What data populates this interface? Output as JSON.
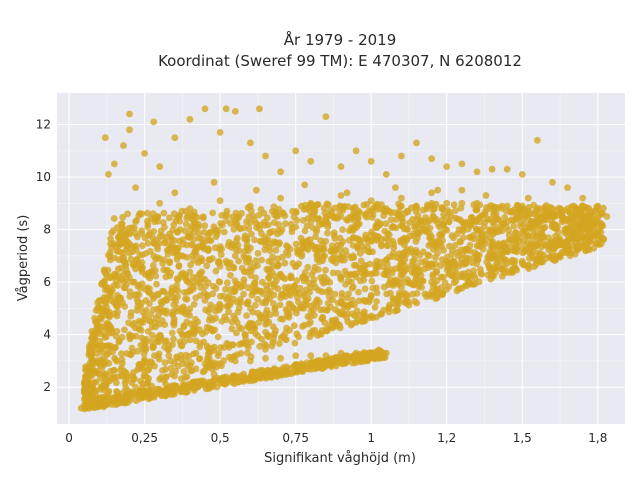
{
  "chart_data": {
    "type": "scatter",
    "title_line1": "År 1979 - 2019",
    "title_line2": "Koordinat (Sweref 99 TM): E 470307, N 6208012",
    "xlabel": "Signifikant våghöjd (m)",
    "ylabel": "Vågperiod (s)",
    "xlim": [
      -0.04,
      1.84
    ],
    "ylim": [
      0.6,
      13.2
    ],
    "x_ticks": [
      0,
      0.25,
      0.5,
      0.75,
      1,
      1.25,
      1.5,
      1.75
    ],
    "x_tick_labels": [
      "0",
      "0,25",
      "0,5",
      "0,75",
      "1",
      "1,2",
      "1,5",
      "1,8"
    ],
    "y_ticks": [
      2,
      4,
      6,
      8,
      10,
      12
    ],
    "y_tick_labels": [
      "2",
      "4",
      "6",
      "8",
      "10",
      "12"
    ],
    "grid": true,
    "legend": "none",
    "marker_color": "#d4a520",
    "plot_background": "#e9e9f2",
    "series": [
      {
        "points": [
          [
            0.04,
            1.2
          ],
          [
            0.06,
            1.3
          ],
          [
            0.07,
            1.6
          ],
          [
            0.08,
            1.9
          ],
          [
            0.09,
            2.2
          ],
          [
            0.1,
            2.5
          ],
          [
            0.11,
            2.0
          ],
          [
            0.12,
            3.0
          ],
          [
            0.13,
            3.5
          ],
          [
            0.14,
            4.2
          ],
          [
            0.15,
            4.8
          ],
          [
            0.16,
            5.5
          ],
          [
            0.17,
            6.1
          ],
          [
            0.18,
            6.8
          ],
          [
            0.19,
            7.4
          ],
          [
            0.2,
            7.9
          ],
          [
            0.22,
            8.3
          ],
          [
            0.24,
            8.6
          ],
          [
            0.26,
            8.1
          ],
          [
            0.28,
            7.5
          ],
          [
            0.3,
            6.9
          ],
          [
            0.32,
            6.2
          ],
          [
            0.34,
            5.6
          ],
          [
            0.36,
            4.9
          ],
          [
            0.38,
            4.3
          ],
          [
            0.4,
            3.8
          ],
          [
            0.42,
            3.3
          ],
          [
            0.45,
            2.9
          ],
          [
            0.48,
            2.5
          ],
          [
            0.5,
            2.3
          ],
          [
            0.12,
            5.2
          ],
          [
            0.15,
            6.3
          ],
          [
            0.18,
            7.1
          ],
          [
            0.21,
            6.0
          ],
          [
            0.24,
            5.2
          ],
          [
            0.27,
            4.5
          ],
          [
            0.3,
            3.9
          ],
          [
            0.33,
            3.2
          ],
          [
            0.36,
            2.8
          ],
          [
            0.39,
            2.4
          ],
          [
            0.1,
            1.4
          ],
          [
            0.14,
            1.6
          ],
          [
            0.18,
            1.8
          ],
          [
            0.22,
            2.0
          ],
          [
            0.26,
            2.2
          ],
          [
            0.3,
            2.3
          ],
          [
            0.34,
            2.5
          ],
          [
            0.38,
            2.6
          ],
          [
            0.42,
            2.7
          ],
          [
            0.46,
            2.8
          ],
          [
            0.5,
            2.9
          ],
          [
            0.55,
            3.0
          ],
          [
            0.6,
            3.0
          ],
          [
            0.65,
            3.1
          ],
          [
            0.7,
            3.1
          ],
          [
            0.75,
            3.2
          ],
          [
            0.8,
            3.2
          ],
          [
            0.85,
            3.2
          ],
          [
            0.9,
            3.3
          ],
          [
            0.95,
            3.3
          ],
          [
            1.0,
            3.3
          ],
          [
            1.05,
            3.3
          ],
          [
            0.8,
            2.9
          ],
          [
            0.85,
            3.0
          ],
          [
            0.9,
            3.1
          ],
          [
            0.95,
            3.1
          ],
          [
            1.0,
            3.2
          ],
          [
            0.45,
            6.1
          ],
          [
            0.5,
            6.6
          ],
          [
            0.55,
            7.0
          ],
          [
            0.6,
            7.3
          ],
          [
            0.65,
            7.6
          ],
          [
            0.7,
            7.9
          ],
          [
            0.75,
            8.1
          ],
          [
            0.8,
            8.3
          ],
          [
            0.85,
            8.4
          ],
          [
            0.9,
            8.5
          ],
          [
            0.95,
            8.6
          ],
          [
            1.0,
            8.7
          ],
          [
            1.05,
            8.8
          ],
          [
            1.1,
            8.9
          ],
          [
            1.15,
            8.9
          ],
          [
            1.2,
            9.0
          ],
          [
            1.25,
            9.0
          ],
          [
            1.3,
            9.0
          ],
          [
            1.35,
            9.0
          ],
          [
            1.4,
            8.9
          ],
          [
            1.45,
            8.9
          ],
          [
            1.5,
            8.9
          ],
          [
            1.55,
            8.8
          ],
          [
            1.6,
            8.8
          ],
          [
            1.65,
            8.8
          ],
          [
            1.7,
            8.9
          ],
          [
            1.75,
            8.8
          ],
          [
            0.6,
            5.0
          ],
          [
            0.65,
            5.2
          ],
          [
            0.7,
            5.4
          ],
          [
            0.75,
            5.6
          ],
          [
            0.8,
            5.8
          ],
          [
            0.85,
            6.0
          ],
          [
            0.9,
            6.1
          ],
          [
            0.95,
            6.2
          ],
          [
            1.0,
            6.3
          ],
          [
            1.05,
            6.4
          ],
          [
            1.1,
            6.5
          ],
          [
            1.15,
            6.6
          ],
          [
            1.2,
            6.7
          ],
          [
            1.25,
            6.8
          ],
          [
            1.3,
            6.9
          ],
          [
            1.35,
            7.0
          ],
          [
            1.4,
            7.1
          ],
          [
            1.45,
            7.2
          ],
          [
            1.5,
            7.3
          ],
          [
            1.55,
            7.4
          ],
          [
            1.6,
            7.5
          ],
          [
            1.65,
            7.6
          ],
          [
            1.7,
            7.7
          ],
          [
            1.75,
            7.9
          ],
          [
            1.78,
            8.5
          ],
          [
            0.7,
            4.6
          ],
          [
            0.8,
            4.9
          ],
          [
            0.9,
            5.2
          ],
          [
            1.0,
            5.5
          ],
          [
            1.1,
            5.8
          ],
          [
            1.2,
            6.0
          ],
          [
            1.3,
            6.3
          ],
          [
            1.4,
            6.5
          ],
          [
            1.5,
            6.8
          ],
          [
            1.6,
            7.1
          ],
          [
            1.7,
            7.4
          ],
          [
            0.15,
            10.5
          ],
          [
            0.18,
            11.2
          ],
          [
            0.2,
            11.8
          ],
          [
            0.25,
            10.9
          ],
          [
            0.3,
            10.4
          ],
          [
            0.35,
            11.5
          ],
          [
            0.4,
            12.2
          ],
          [
            0.45,
            12.6
          ],
          [
            0.5,
            11.7
          ],
          [
            0.55,
            12.5
          ],
          [
            0.6,
            11.3
          ],
          [
            0.65,
            10.8
          ],
          [
            0.7,
            10.2
          ],
          [
            0.75,
            11.0
          ],
          [
            0.8,
            10.6
          ],
          [
            0.85,
            12.3
          ],
          [
            0.9,
            10.4
          ],
          [
            0.95,
            11.0
          ],
          [
            1.0,
            10.6
          ],
          [
            1.05,
            10.1
          ],
          [
            1.1,
            10.8
          ],
          [
            1.15,
            11.3
          ],
          [
            1.2,
            10.7
          ],
          [
            1.25,
            10.4
          ],
          [
            1.3,
            10.5
          ],
          [
            1.35,
            10.2
          ],
          [
            1.4,
            10.3
          ],
          [
            1.45,
            10.3
          ],
          [
            1.5,
            10.1
          ],
          [
            1.55,
            11.4
          ],
          [
            1.6,
            9.8
          ],
          [
            1.65,
            9.6
          ],
          [
            1.7,
            9.2
          ],
          [
            1.75,
            8.9
          ],
          [
            0.12,
            11.5
          ],
          [
            0.13,
            10.1
          ],
          [
            0.2,
            12.4
          ],
          [
            0.28,
            12.1
          ],
          [
            0.52,
            12.6
          ],
          [
            0.63,
            12.6
          ],
          [
            0.22,
            9.6
          ],
          [
            0.35,
            9.4
          ],
          [
            0.48,
            9.8
          ],
          [
            0.62,
            9.5
          ],
          [
            0.78,
            9.7
          ],
          [
            0.92,
            9.4
          ],
          [
            1.08,
            9.6
          ],
          [
            1.22,
            9.5
          ],
          [
            1.38,
            9.3
          ],
          [
            1.52,
            9.2
          ],
          [
            0.3,
            9.0
          ],
          [
            0.4,
            8.8
          ],
          [
            0.5,
            9.1
          ],
          [
            0.6,
            8.9
          ],
          [
            0.7,
            9.2
          ],
          [
            0.8,
            9.0
          ],
          [
            0.9,
            9.3
          ],
          [
            1.0,
            9.1
          ],
          [
            1.1,
            9.2
          ],
          [
            1.2,
            9.4
          ],
          [
            1.3,
            9.5
          ],
          [
            0.2,
            4.0
          ],
          [
            0.25,
            4.6
          ],
          [
            0.3,
            5.0
          ],
          [
            0.35,
            5.4
          ],
          [
            0.4,
            5.7
          ],
          [
            0.45,
            5.3
          ],
          [
            0.5,
            5.0
          ],
          [
            0.55,
            4.6
          ],
          [
            0.6,
            4.3
          ],
          [
            0.65,
            4.1
          ],
          [
            0.22,
            6.5
          ],
          [
            0.28,
            7.0
          ],
          [
            0.34,
            7.4
          ],
          [
            0.4,
            7.7
          ],
          [
            0.46,
            7.2
          ],
          [
            0.52,
            6.8
          ],
          [
            0.58,
            6.4
          ],
          [
            0.64,
            6.0
          ],
          [
            0.7,
            6.3
          ],
          [
            0.76,
            6.7
          ],
          [
            0.82,
            7.0
          ],
          [
            0.88,
            7.2
          ],
          [
            0.94,
            7.4
          ],
          [
            1.0,
            7.6
          ],
          [
            1.06,
            7.8
          ],
          [
            1.12,
            8.0
          ],
          [
            1.18,
            8.1
          ],
          [
            1.24,
            8.2
          ],
          [
            1.3,
            8.3
          ],
          [
            1.36,
            8.3
          ],
          [
            1.42,
            8.4
          ],
          [
            1.48,
            8.4
          ],
          [
            1.54,
            8.3
          ],
          [
            1.6,
            8.2
          ],
          [
            1.66,
            8.1
          ],
          [
            1.72,
            8.3
          ]
        ]
      }
    ]
  }
}
